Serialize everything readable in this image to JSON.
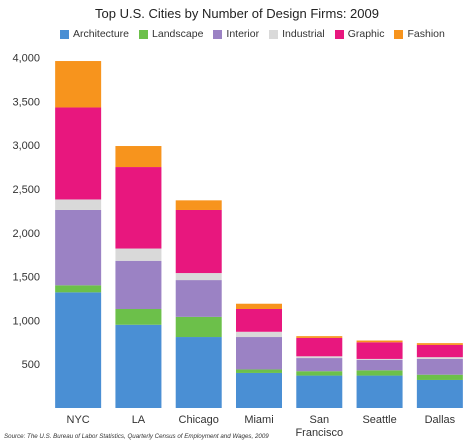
{
  "chart_data": {
    "type": "bar",
    "stacked": true,
    "title": "Top U.S. Cities by Number of Design Firms: 2009",
    "categories": [
      "NYC",
      "LA",
      "Chicago",
      "Miami",
      "San Francisco",
      "Seattle",
      "Dallas"
    ],
    "category_labels": [
      [
        "NYC"
      ],
      [
        "LA"
      ],
      [
        "Chicago"
      ],
      [
        "Miami"
      ],
      [
        "San",
        "Francisco"
      ],
      [
        "Seattle"
      ],
      [
        "Dallas"
      ]
    ],
    "series": [
      {
        "name": "Architecture",
        "color": "#4a8fd4",
        "values": [
          1320,
          950,
          810,
          400,
          370,
          370,
          320
        ]
      },
      {
        "name": "Landscape",
        "color": "#6cc04a",
        "values": [
          80,
          180,
          230,
          40,
          50,
          60,
          60
        ]
      },
      {
        "name": "Interior",
        "color": "#9b82c4",
        "values": [
          860,
          550,
          420,
          370,
          150,
          120,
          180
        ]
      },
      {
        "name": "Industrial",
        "color": "#d9d9d9",
        "values": [
          120,
          140,
          80,
          60,
          20,
          10,
          20
        ]
      },
      {
        "name": "Graphic",
        "color": "#e8177e",
        "values": [
          1050,
          930,
          720,
          260,
          210,
          190,
          140
        ]
      },
      {
        "name": "Fashion",
        "color": "#f7941d",
        "values": [
          530,
          240,
          110,
          60,
          20,
          20,
          20
        ]
      }
    ],
    "yticks": [
      500,
      1000,
      1500,
      2000,
      2500,
      3000,
      3500,
      4000
    ],
    "ytick_labels": [
      "500",
      "1,000",
      "1,500",
      "2,000",
      "2,500",
      "3,000",
      "3,500",
      "4,000"
    ],
    "ylim": [
      0,
      4200
    ],
    "grid": false,
    "legend_position": "top"
  },
  "source_note": "Source: The U.S. Bureau of Labor Statistics, Quarterly Census of Employment and Wages, 2009"
}
